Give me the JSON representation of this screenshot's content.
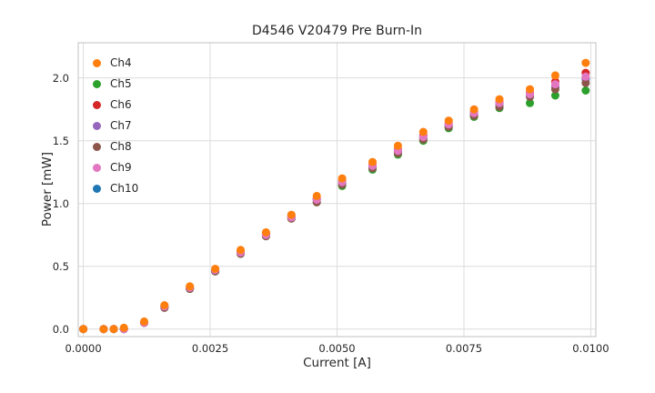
{
  "figure": {
    "title": "D4546 V20479 Pre Burn-In",
    "xlabel": "Current [A]",
    "ylabel": "Power [mW]"
  },
  "colors": {
    "background": "#ffffff",
    "grid": "#dcdcdc",
    "spine": "#cccccc",
    "text": "#262626"
  },
  "chart_data": {
    "type": "scatter",
    "title": "D4546 V20479 Pre Burn-In",
    "xlabel": "Current [A]",
    "ylabel": "Power [mW]",
    "grid": true,
    "legend_position": "upper left",
    "marker_radius": 4.5,
    "xlim": [
      -0.0001,
      0.0101
    ],
    "ylim": [
      -0.06,
      2.28
    ],
    "xticks": {
      "values": [
        0.0,
        0.0025,
        0.005,
        0.0075,
        0.01
      ],
      "labels": [
        "0.0000",
        "0.0025",
        "0.0050",
        "0.0075",
        "0.0100"
      ]
    },
    "yticks": {
      "values": [
        0.0,
        0.5,
        1.0,
        1.5,
        2.0
      ],
      "labels": [
        "0.0",
        "0.5",
        "1.0",
        "1.5",
        "2.0"
      ]
    },
    "x": [
      0.0,
      0.0004,
      0.0006,
      0.0008,
      0.0012,
      0.0016,
      0.0021,
      0.0026,
      0.0031,
      0.0036,
      0.0041,
      0.0046,
      0.0051,
      0.0057,
      0.0062,
      0.0067,
      0.0072,
      0.0077,
      0.0082,
      0.0088,
      0.0093,
      0.0099
    ],
    "series": [
      {
        "name": "Ch4",
        "color": "#ff7f0e",
        "values": [
          0.0,
          0.0,
          0.0,
          0.01,
          0.06,
          0.19,
          0.34,
          0.48,
          0.63,
          0.77,
          0.91,
          1.06,
          1.2,
          1.33,
          1.46,
          1.57,
          1.66,
          1.75,
          1.83,
          1.91,
          2.02,
          2.12
        ]
      },
      {
        "name": "Ch5",
        "color": "#2ca02c",
        "values": [
          0.0,
          0.0,
          0.0,
          0.0,
          0.05,
          0.17,
          0.32,
          0.46,
          0.6,
          0.74,
          0.88,
          1.01,
          1.14,
          1.27,
          1.39,
          1.5,
          1.6,
          1.69,
          1.76,
          1.8,
          1.86,
          1.9
        ]
      },
      {
        "name": "Ch6",
        "color": "#d62728",
        "values": [
          0.0,
          0.0,
          0.0,
          0.0,
          0.05,
          0.18,
          0.33,
          0.47,
          0.62,
          0.76,
          0.9,
          1.04,
          1.18,
          1.31,
          1.43,
          1.54,
          1.64,
          1.73,
          1.81,
          1.88,
          1.97,
          2.04
        ]
      },
      {
        "name": "Ch7",
        "color": "#9467bd",
        "values": [
          0.0,
          0.0,
          0.0,
          0.0,
          0.05,
          0.18,
          0.32,
          0.46,
          0.61,
          0.75,
          0.89,
          1.03,
          1.16,
          1.29,
          1.41,
          1.52,
          1.62,
          1.71,
          1.79,
          1.86,
          1.93,
          1.99
        ]
      },
      {
        "name": "Ch8",
        "color": "#8c564b",
        "values": [
          0.0,
          0.0,
          0.0,
          0.0,
          0.05,
          0.17,
          0.32,
          0.46,
          0.6,
          0.74,
          0.88,
          1.01,
          1.15,
          1.28,
          1.4,
          1.51,
          1.61,
          1.7,
          1.77,
          1.85,
          1.91,
          1.96
        ]
      },
      {
        "name": "Ch9",
        "color": "#e377c2",
        "values": [
          0.0,
          0.0,
          0.0,
          0.0,
          0.05,
          0.18,
          0.33,
          0.47,
          0.61,
          0.75,
          0.89,
          1.03,
          1.17,
          1.3,
          1.42,
          1.53,
          1.63,
          1.72,
          1.8,
          1.87,
          1.95,
          2.01
        ]
      },
      {
        "name": "Ch10",
        "color": "#1f77b4",
        "values": [
          0.0,
          0.0,
          0.0,
          0.0,
          0.05,
          0.18,
          0.32,
          0.46,
          0.61,
          0.75,
          0.89,
          1.03,
          1.16,
          1.29,
          1.41,
          1.52,
          1.62,
          1.71,
          1.79,
          1.86,
          1.93,
          1.99
        ]
      }
    ]
  }
}
